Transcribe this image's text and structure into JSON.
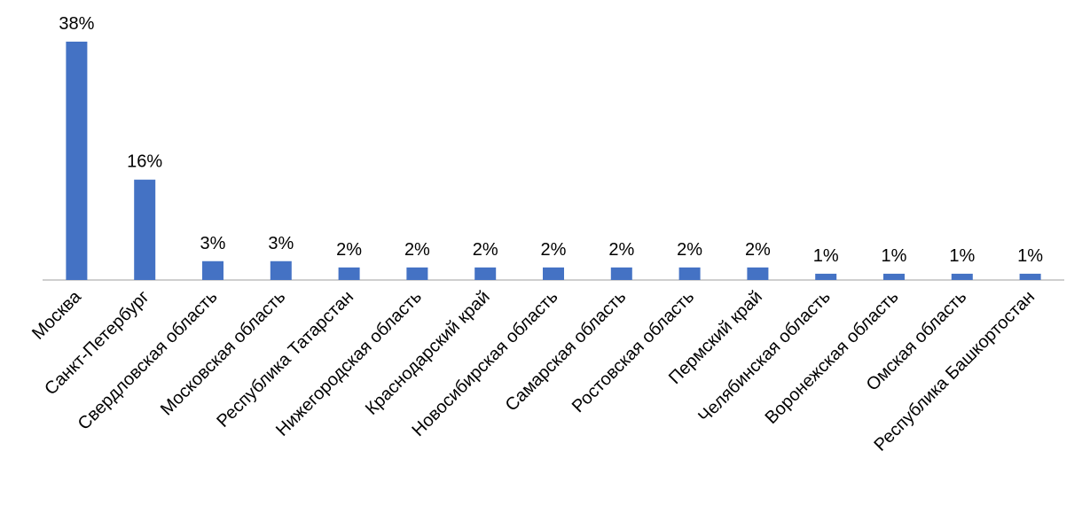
{
  "chart_data": {
    "type": "bar",
    "categories": [
      "Москва",
      "Санкт-Петербург",
      "Свердловская область",
      "Московская область",
      "Республика Татарстан",
      "Нижегородская область",
      "Краснодарский край",
      "Новосибирская область",
      "Самарская область",
      "Ростовская область",
      "Пермский край",
      "Челябинская область",
      "Воронежская область",
      "Омская область",
      "Республика Башкортостан"
    ],
    "values": [
      38,
      16,
      3,
      3,
      2,
      2,
      2,
      2,
      2,
      2,
      2,
      1,
      1,
      1,
      1
    ],
    "value_labels": [
      "38%",
      "16%",
      "3%",
      "3%",
      "2%",
      "2%",
      "2%",
      "2%",
      "2%",
      "2%",
      "2%",
      "1%",
      "1%",
      "1%",
      "1%"
    ],
    "color": "#4472c4"
  }
}
